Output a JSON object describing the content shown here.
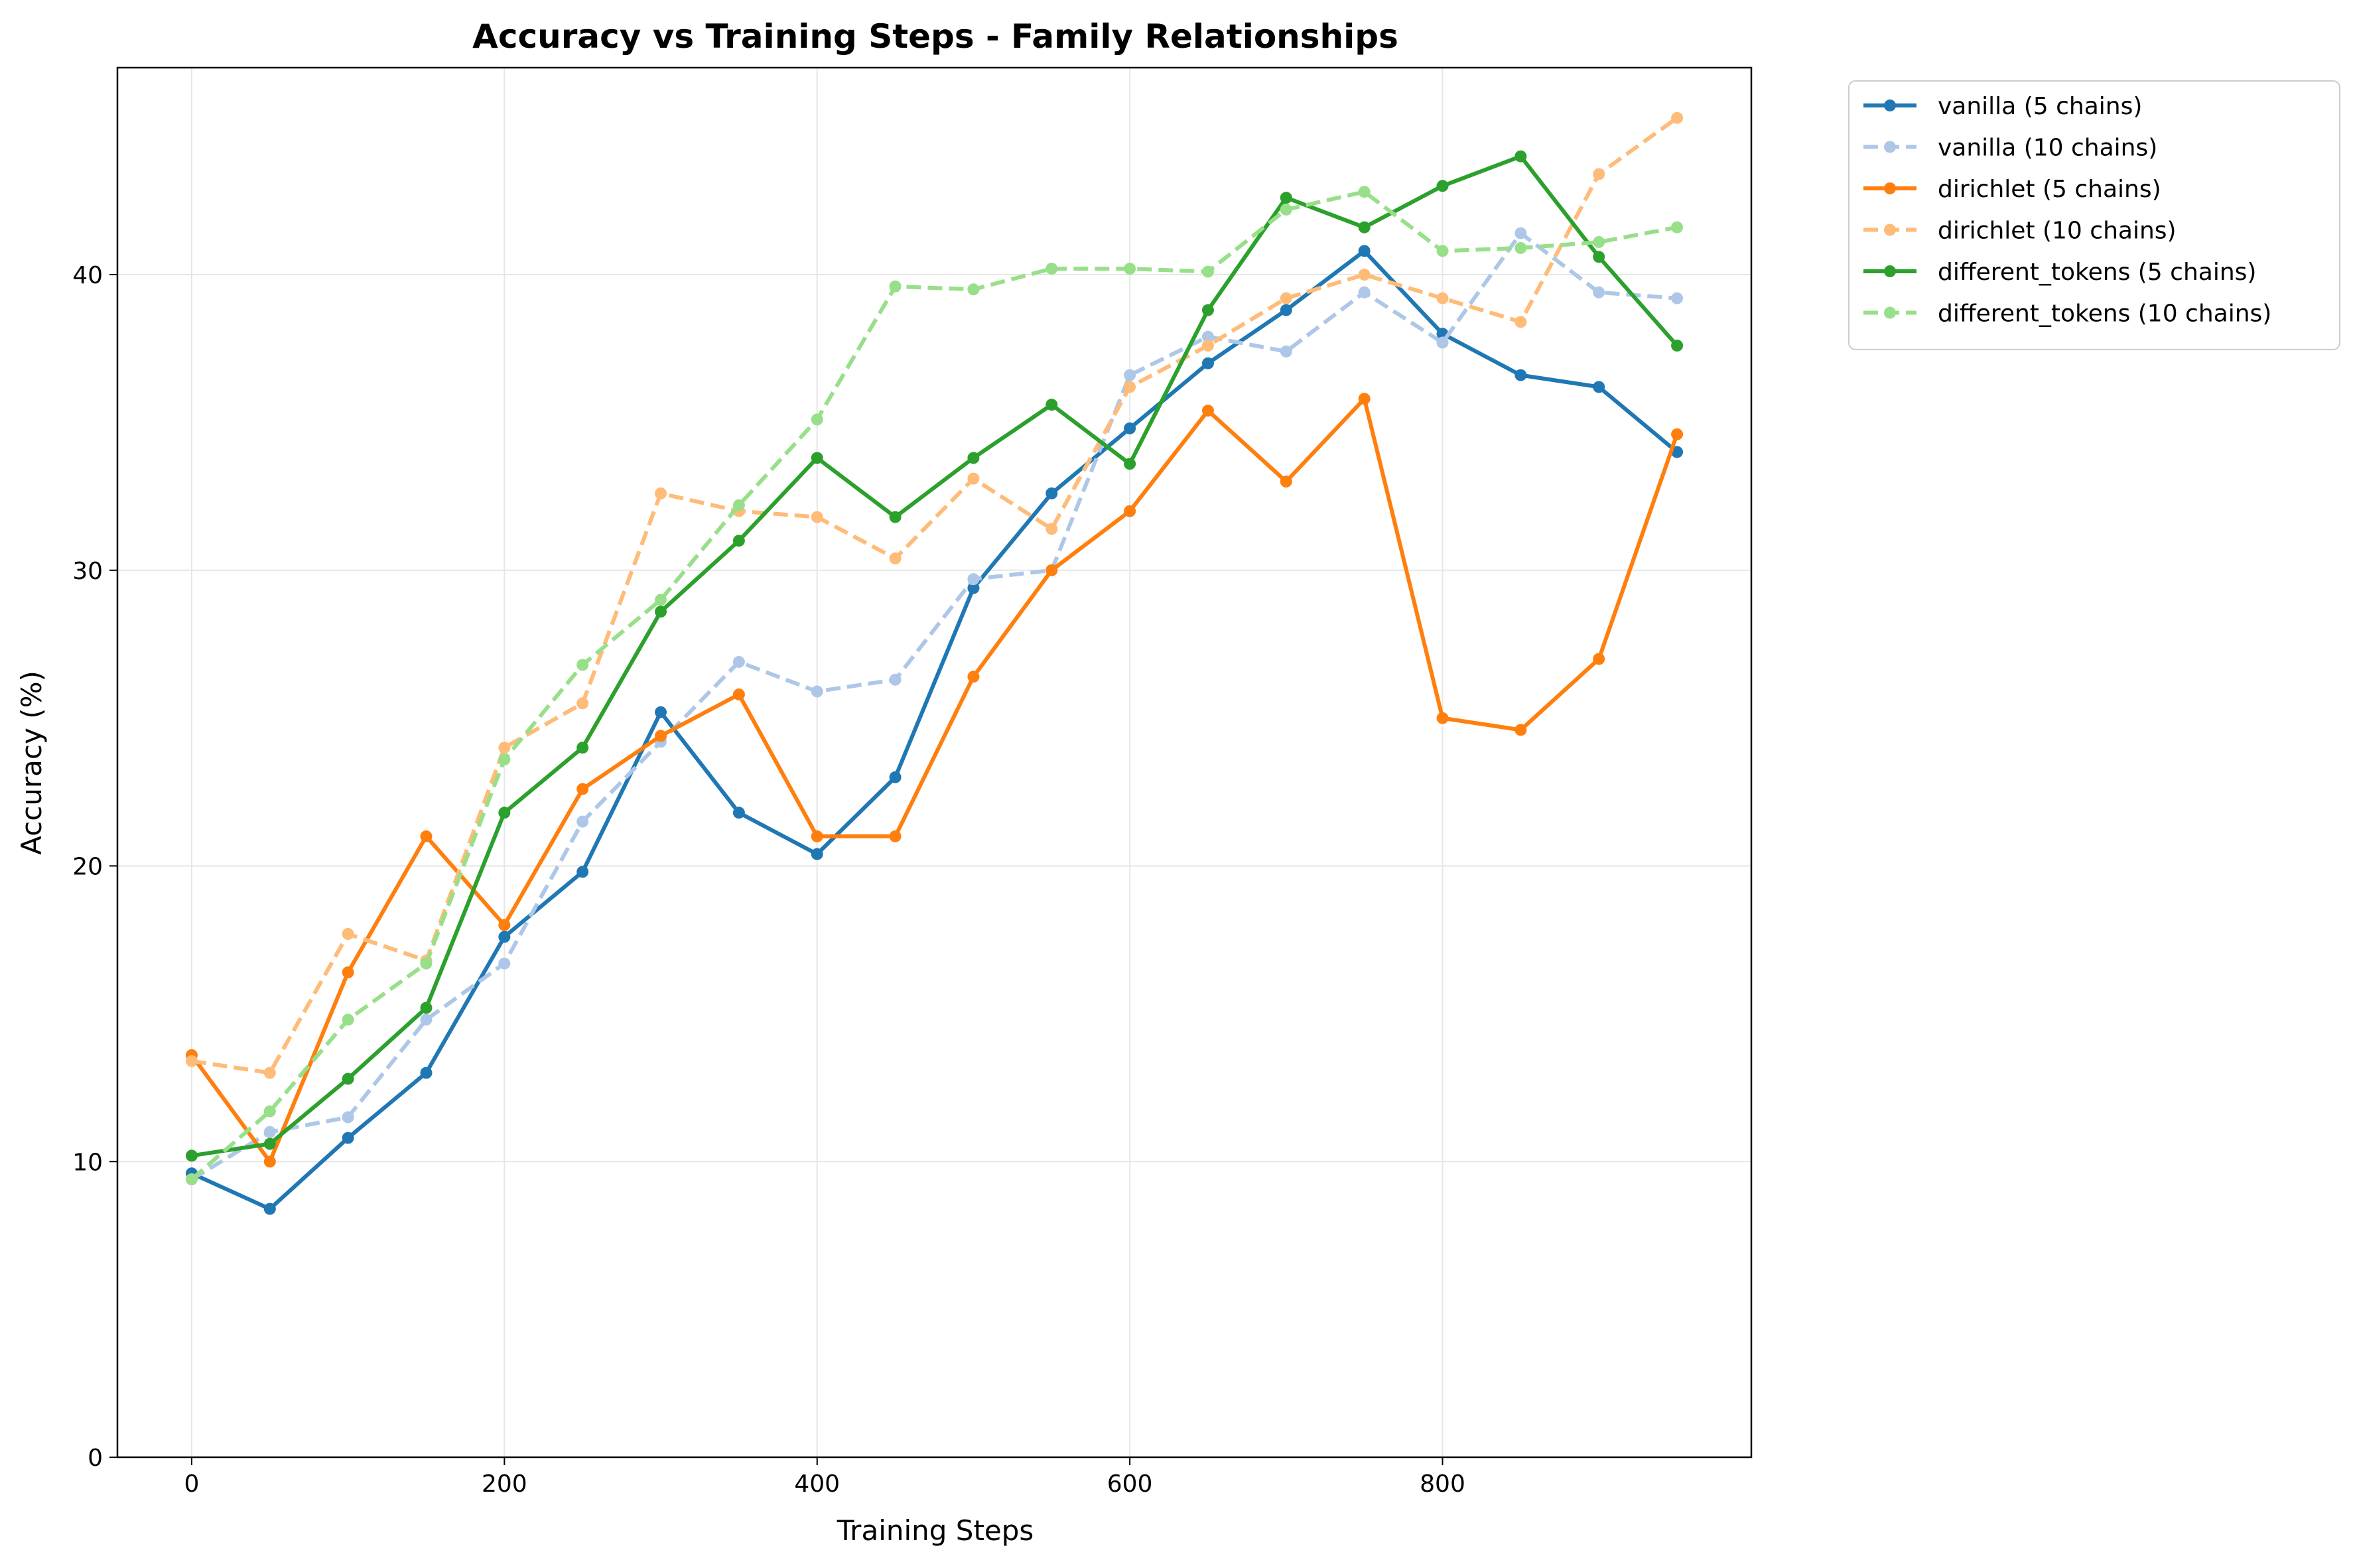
{
  "chart_data": {
    "type": "line",
    "title": "Accuracy vs Training Steps - Family Relationships",
    "xlabel": "Training Steps",
    "ylabel": "Accuracy (%)",
    "xlim": [
      -47.5,
      997.5
    ],
    "ylim": [
      0,
      47
    ],
    "x_ticks": [
      0,
      200,
      400,
      600,
      800
    ],
    "y_ticks": [
      0,
      10,
      20,
      30,
      40
    ],
    "grid": true,
    "legend_position": "outside-top-right",
    "x": [
      0,
      50,
      100,
      150,
      200,
      250,
      300,
      350,
      400,
      450,
      500,
      550,
      600,
      650,
      700,
      750,
      800,
      850,
      900,
      950
    ],
    "series": [
      {
        "name": "vanilla (5 chains)",
        "color": "#1f77b4",
        "dashed": false,
        "values": [
          9.6,
          8.4,
          10.8,
          13.0,
          17.6,
          19.8,
          25.2,
          21.8,
          20.4,
          23.0,
          29.4,
          32.6,
          34.8,
          37.0,
          38.8,
          40.8,
          38.0,
          36.6,
          36.2,
          34.0
        ]
      },
      {
        "name": "vanilla (10 chains)",
        "color": "#aec7e8",
        "dashed": true,
        "values": [
          9.4,
          11.0,
          11.5,
          14.8,
          16.7,
          21.5,
          24.2,
          26.9,
          25.9,
          26.3,
          29.7,
          30.0,
          36.6,
          37.9,
          37.4,
          39.4,
          37.7,
          41.4,
          39.4,
          39.2
        ]
      },
      {
        "name": "dirichlet (5 chains)",
        "color": "#ff7f0e",
        "dashed": false,
        "values": [
          13.6,
          10.0,
          16.4,
          21.0,
          18.0,
          22.6,
          24.4,
          25.8,
          21.0,
          21.0,
          26.4,
          30.0,
          32.0,
          35.4,
          33.0,
          35.8,
          25.0,
          24.6,
          27.0,
          34.6
        ]
      },
      {
        "name": "dirichlet (10 chains)",
        "color": "#ffbb78",
        "dashed": true,
        "values": [
          13.4,
          13.0,
          17.7,
          16.8,
          24.0,
          25.5,
          32.6,
          32.0,
          31.8,
          30.4,
          33.1,
          31.4,
          36.2,
          37.6,
          39.2,
          40.0,
          39.2,
          38.4,
          43.4,
          45.3
        ]
      },
      {
        "name": "different_tokens (5 chains)",
        "color": "#2ca02c",
        "dashed": false,
        "values": [
          10.2,
          10.6,
          12.8,
          15.2,
          21.8,
          24.0,
          28.6,
          31.0,
          33.8,
          31.8,
          33.8,
          35.6,
          33.6,
          38.8,
          42.6,
          41.6,
          43.0,
          44.0,
          40.6,
          37.6
        ]
      },
      {
        "name": "different_tokens (10 chains)",
        "color": "#98df8a",
        "dashed": true,
        "values": [
          9.4,
          11.7,
          14.8,
          16.7,
          23.6,
          26.8,
          29.0,
          32.2,
          35.1,
          39.6,
          39.5,
          40.2,
          40.2,
          40.1,
          42.2,
          42.8,
          40.8,
          40.9,
          41.1,
          41.6
        ]
      }
    ]
  }
}
